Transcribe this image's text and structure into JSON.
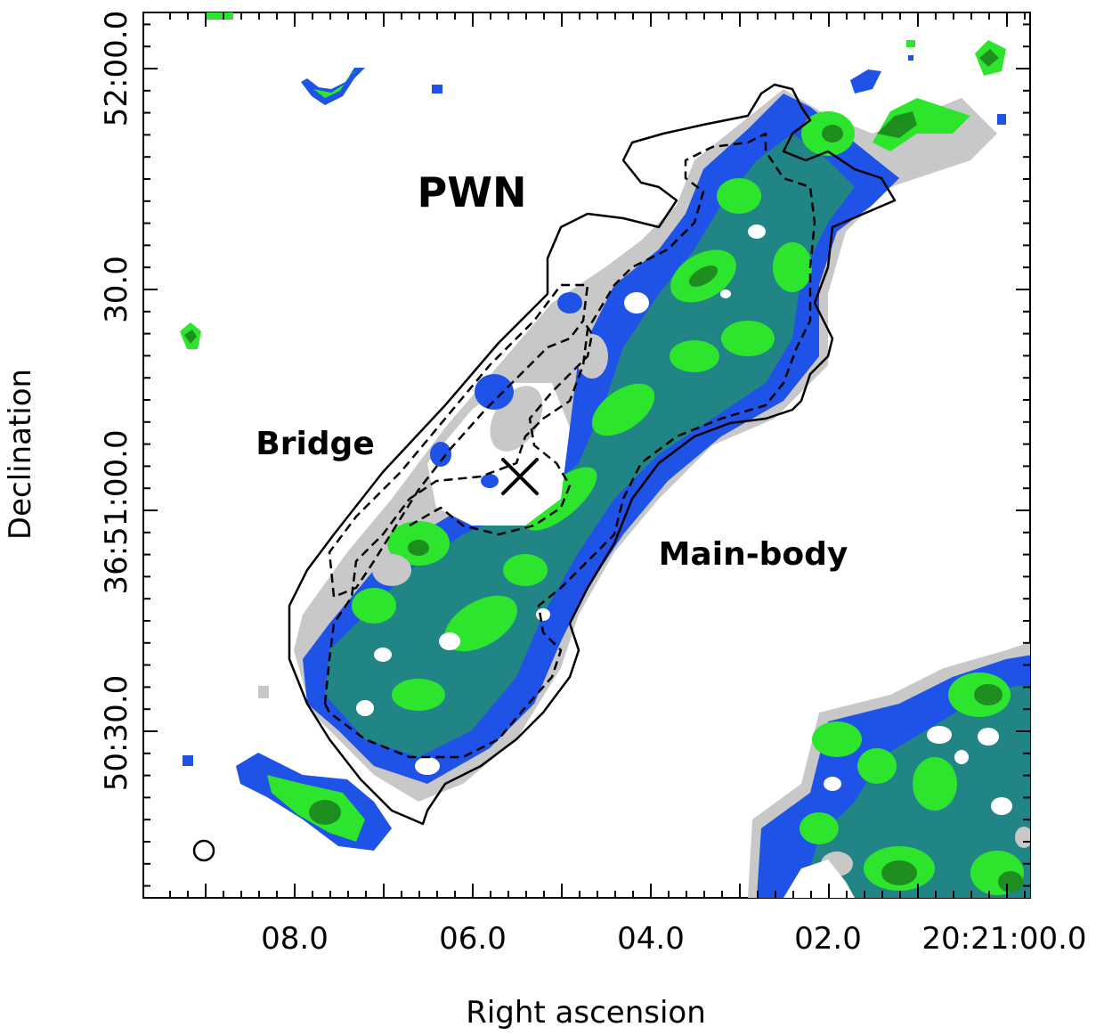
{
  "figure": {
    "xlabel": "Right ascension",
    "ylabel": "Declination",
    "x_ticks": [
      "08.0",
      "06.0",
      "04.0",
      "02.0",
      "20:21:00.0"
    ],
    "y_ticks": [
      "52:00.0",
      "30.0",
      "36:51:00.0",
      "50:30.0"
    ],
    "annotations": {
      "pwn": "PWN",
      "bridge": "Bridge",
      "main_body": "Main-body"
    },
    "colors": {
      "gray": "#c8c8c8",
      "blue": "#1f52e6",
      "teal": "#228585",
      "green": "#2ee52e",
      "dark_green": "#1e8f1e"
    }
  }
}
